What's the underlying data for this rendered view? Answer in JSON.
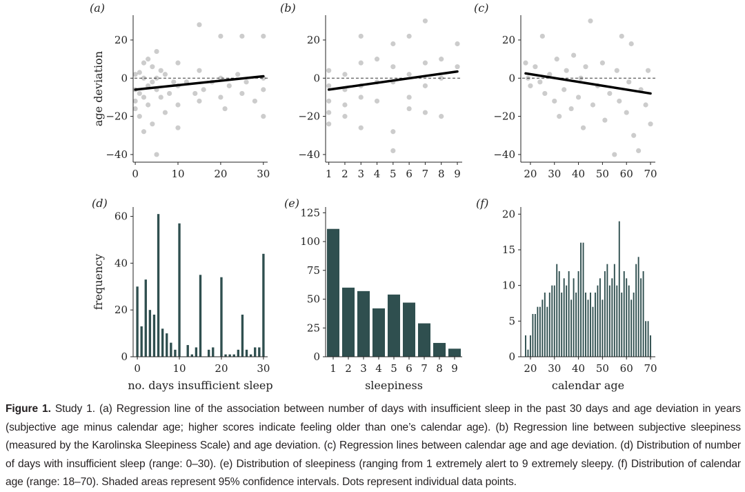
{
  "caption": {
    "label": "Figure 1.",
    "text": "Study 1. (a) Regression line of the association between number of days with insufficient sleep in the past 30 days and age deviation in years (subjective age minus calendar age; higher scores indicate feeling older than one’s calendar age). (b) Regression line between subjective sleepiness (measured by the Karolinska Sleepiness Scale) and age deviation. (c) Regression lines between calendar age and age deviation. (d) Distribution of number of days with insufficient sleep (range: 0–30). (e) Distribution of sleepiness (ranging from 1 extremely alert to 9 extremely sleepy. (f) Distribution of calendar age (range: 18–70). Shaded areas represent 95% confidence intervals. Dots represent individual data points."
  },
  "colors": {
    "bar": "#2f4f4f",
    "dot": "#000000",
    "line": "#000000"
  },
  "chart_data": [
    {
      "panel": "(a)",
      "type": "scatter",
      "xlabel": "",
      "ylabel": "age deviation",
      "xticks": [
        0,
        10,
        20,
        30
      ],
      "yticks": [
        -40,
        -20,
        0,
        20
      ],
      "xlim": [
        -0.5,
        31
      ],
      "ylim": [
        -44,
        33
      ],
      "reference_line": 0,
      "regression": {
        "x": [
          0,
          30
        ],
        "y": [
          -6,
          1
        ]
      },
      "points_x": [
        0,
        1,
        2,
        3,
        4,
        5,
        6,
        7,
        8,
        9,
        10,
        12,
        14,
        15,
        16,
        18,
        20,
        21,
        22,
        24,
        25,
        26,
        28,
        30
      ],
      "points": [
        [
          0,
          -12
        ],
        [
          0,
          -6
        ],
        [
          0,
          2
        ],
        [
          0,
          -16
        ],
        [
          1,
          -8
        ],
        [
          1,
          3
        ],
        [
          1,
          -20
        ],
        [
          2,
          0
        ],
        [
          2,
          -10
        ],
        [
          2,
          -28
        ],
        [
          2,
          8
        ],
        [
          3,
          -4
        ],
        [
          3,
          -14
        ],
        [
          3,
          10
        ],
        [
          4,
          -2
        ],
        [
          4,
          -24
        ],
        [
          4,
          6
        ],
        [
          5,
          -6
        ],
        [
          5,
          -40
        ],
        [
          5,
          14
        ],
        [
          5,
          0
        ],
        [
          6,
          -10
        ],
        [
          6,
          4
        ],
        [
          7,
          -18
        ],
        [
          7,
          2
        ],
        [
          8,
          -8
        ],
        [
          9,
          -2
        ],
        [
          10,
          -4
        ],
        [
          10,
          -14
        ],
        [
          10,
          8
        ],
        [
          10,
          -26
        ],
        [
          12,
          -2
        ],
        [
          14,
          -8
        ],
        [
          15,
          4
        ],
        [
          15,
          -12
        ],
        [
          15,
          28
        ],
        [
          16,
          -6
        ],
        [
          18,
          -2
        ],
        [
          20,
          -10
        ],
        [
          20,
          0
        ],
        [
          20,
          22
        ],
        [
          21,
          -16
        ],
        [
          22,
          -4
        ],
        [
          24,
          2
        ],
        [
          25,
          -8
        ],
        [
          25,
          22
        ],
        [
          26,
          -2
        ],
        [
          28,
          -12
        ],
        [
          30,
          0
        ],
        [
          30,
          -20
        ],
        [
          30,
          22
        ],
        [
          30,
          -6
        ]
      ]
    },
    {
      "panel": "(b)",
      "type": "scatter",
      "xlabel": "",
      "ylabel": "",
      "xticks": [
        1,
        2,
        3,
        4,
        5,
        6,
        7,
        8,
        9
      ],
      "yticks": [
        -40,
        -20,
        0,
        20
      ],
      "xlim": [
        0.8,
        9.3
      ],
      "ylim": [
        -44,
        33
      ],
      "reference_line": 0,
      "regression": {
        "x": [
          1,
          9
        ],
        "y": [
          -6,
          3.5
        ]
      },
      "points": [
        [
          1,
          -24
        ],
        [
          1,
          -12
        ],
        [
          1,
          -4
        ],
        [
          1,
          4
        ],
        [
          1,
          -18
        ],
        [
          2,
          -6
        ],
        [
          2,
          2
        ],
        [
          2,
          -14
        ],
        [
          2,
          -20
        ],
        [
          3,
          -26
        ],
        [
          3,
          -4
        ],
        [
          3,
          22
        ],
        [
          3,
          8
        ],
        [
          3,
          -10
        ],
        [
          4,
          -2
        ],
        [
          4,
          -12
        ],
        [
          4,
          10
        ],
        [
          5,
          -28
        ],
        [
          5,
          -38
        ],
        [
          5,
          18
        ],
        [
          5,
          -2
        ],
        [
          5,
          6
        ],
        [
          6,
          22
        ],
        [
          6,
          -10
        ],
        [
          6,
          2
        ],
        [
          6,
          -16
        ],
        [
          7,
          30
        ],
        [
          7,
          -4
        ],
        [
          7,
          8
        ],
        [
          7,
          -18
        ],
        [
          8,
          10
        ],
        [
          8,
          -20
        ],
        [
          8,
          0
        ],
        [
          9,
          18
        ],
        [
          9,
          6
        ]
      ]
    },
    {
      "panel": "(c)",
      "type": "scatter",
      "xlabel": "",
      "ylabel": "",
      "xticks": [
        20,
        30,
        40,
        50,
        60,
        70
      ],
      "yticks": [
        -40,
        -20,
        0,
        20
      ],
      "xlim": [
        16,
        72
      ],
      "ylim": [
        -44,
        33
      ],
      "reference_line": 0,
      "regression": {
        "x": [
          18,
          70
        ],
        "y": [
          2.5,
          -8
        ]
      },
      "points": [
        [
          18,
          8
        ],
        [
          19,
          0
        ],
        [
          20,
          -4
        ],
        [
          22,
          6
        ],
        [
          24,
          -2
        ],
        [
          25,
          22
        ],
        [
          26,
          -8
        ],
        [
          28,
          2
        ],
        [
          30,
          -12
        ],
        [
          31,
          10
        ],
        [
          32,
          -20
        ],
        [
          34,
          -6
        ],
        [
          35,
          4
        ],
        [
          37,
          -16
        ],
        [
          38,
          12
        ],
        [
          40,
          -10
        ],
        [
          41,
          0
        ],
        [
          42,
          -26
        ],
        [
          43,
          6
        ],
        [
          45,
          30
        ],
        [
          46,
          -14
        ],
        [
          48,
          -4
        ],
        [
          50,
          8
        ],
        [
          51,
          -22
        ],
        [
          53,
          -8
        ],
        [
          55,
          -40
        ],
        [
          56,
          4
        ],
        [
          57,
          -12
        ],
        [
          58,
          22
        ],
        [
          60,
          -18
        ],
        [
          61,
          -2
        ],
        [
          62,
          18
        ],
        [
          63,
          -30
        ],
        [
          65,
          -38
        ],
        [
          66,
          -6
        ],
        [
          68,
          -14
        ],
        [
          69,
          4
        ],
        [
          70,
          -24
        ]
      ]
    },
    {
      "panel": "(d)",
      "type": "bar",
      "xlabel": "no. days insufficient sleep",
      "ylabel": "frequency",
      "xticks": [
        0,
        10,
        20,
        30
      ],
      "yticks": [
        0,
        20,
        40,
        60
      ],
      "xlim": [
        -1,
        31
      ],
      "ylim": [
        0,
        64
      ],
      "x": [
        0,
        1,
        2,
        3,
        4,
        5,
        6,
        7,
        8,
        9,
        10,
        11,
        12,
        13,
        14,
        15,
        16,
        17,
        18,
        19,
        20,
        21,
        22,
        23,
        24,
        25,
        26,
        27,
        28,
        29,
        30
      ],
      "values": [
        30,
        13,
        33,
        20,
        18,
        61,
        12,
        10,
        6,
        3,
        57,
        0,
        5,
        1,
        4,
        35,
        0,
        3,
        4,
        0,
        34,
        1,
        1,
        1,
        3,
        18,
        3,
        1,
        4,
        4,
        44
      ]
    },
    {
      "panel": "(e)",
      "type": "bar",
      "xlabel": "sleepiness",
      "ylabel": "",
      "xticks": [
        1,
        2,
        3,
        4,
        5,
        6,
        7,
        8,
        9
      ],
      "yticks": [
        0,
        25,
        50,
        75,
        100,
        125
      ],
      "xlim": [
        0.5,
        9.5
      ],
      "ylim": [
        0,
        130
      ],
      "x": [
        1,
        2,
        3,
        4,
        5,
        6,
        7,
        8,
        9
      ],
      "values": [
        111,
        60,
        57,
        42,
        54,
        47,
        29,
        12,
        7
      ]
    },
    {
      "panel": "(f)",
      "type": "bar",
      "xlabel": "calendar age",
      "ylabel": "",
      "xticks": [
        20,
        30,
        40,
        50,
        60,
        70
      ],
      "yticks": [
        0,
        5,
        10,
        15,
        20
      ],
      "xlim": [
        16,
        72
      ],
      "ylim": [
        0,
        21
      ],
      "x": [
        18,
        19,
        20,
        21,
        22,
        23,
        24,
        25,
        26,
        27,
        28,
        29,
        30,
        31,
        32,
        33,
        34,
        35,
        36,
        37,
        38,
        39,
        40,
        41,
        42,
        43,
        44,
        45,
        46,
        47,
        48,
        49,
        50,
        51,
        52,
        53,
        54,
        55,
        56,
        57,
        58,
        59,
        60,
        61,
        62,
        63,
        64,
        65,
        66,
        67,
        68,
        69,
        70
      ],
      "values": [
        3,
        1,
        3,
        6,
        6,
        7,
        7,
        8,
        9,
        7,
        9,
        10,
        10,
        13,
        12,
        9,
        11,
        10,
        12,
        8,
        11,
        9,
        12,
        16,
        16,
        9,
        8,
        9,
        7,
        9,
        10,
        11,
        8,
        12,
        13,
        10,
        11,
        13,
        10,
        19,
        9,
        12,
        11,
        10,
        8,
        9,
        13,
        14,
        11,
        12,
        5,
        5,
        3
      ]
    }
  ]
}
